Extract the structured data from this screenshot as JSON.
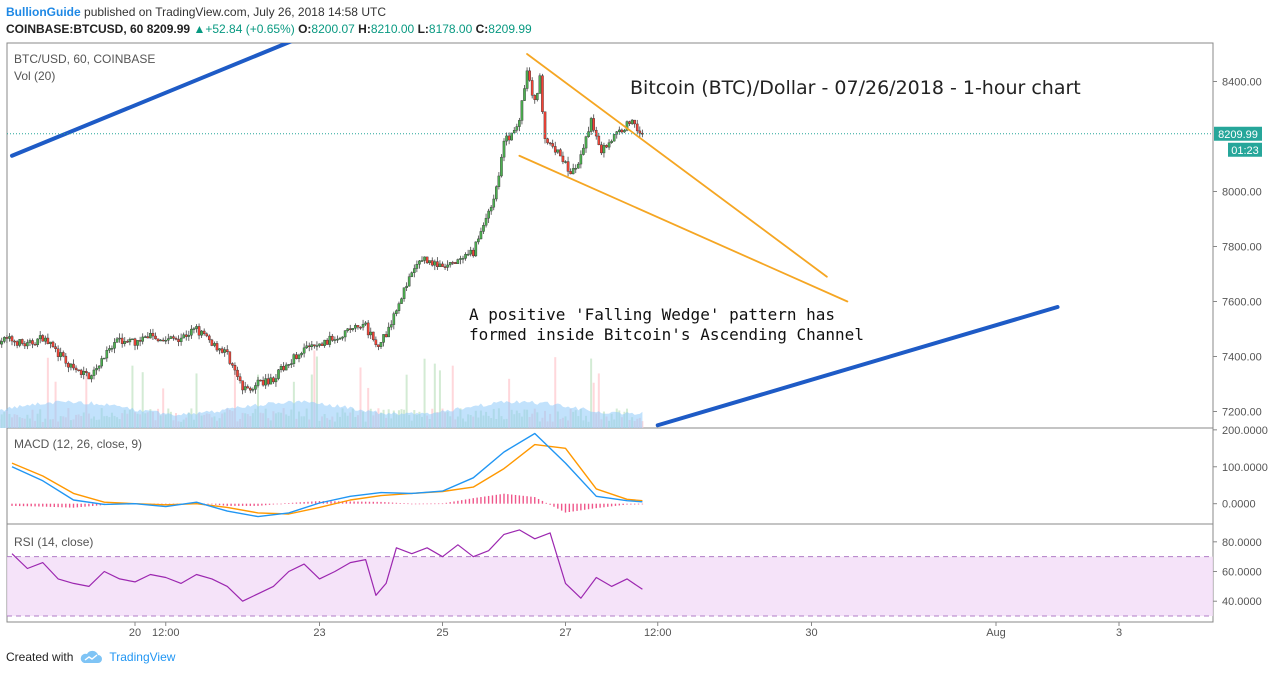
{
  "header": {
    "publisher": "BullionGuide",
    "published_text": "published on TradingView.com, July 26, 2018 14:58 UTC",
    "symbol": "COINBASE:BTCUSD, 60",
    "last": "8209.99",
    "change": "+52.84 (+0.65%)",
    "open_label": "O:",
    "open": "8200.07",
    "high_label": "H:",
    "high": "8210.00",
    "low_label": "L:",
    "low": "8178.00",
    "close_label": "C:",
    "close": "8209.99"
  },
  "footer": {
    "created_with": "Created with",
    "brand": "TradingView",
    "icon": "tradingview-cloud-icon"
  },
  "colors": {
    "up": "#4caf50",
    "down": "#f44336",
    "channel": "#1e5bc6",
    "wedge": "#f5a623",
    "macd": "#2196f3",
    "signal": "#ff9800",
    "rsi": "#9c27b0",
    "volume": "#90caf9"
  },
  "chart_data": [
    {
      "type": "candlestick",
      "panel": "price",
      "labels": [
        "BTC/USD, 60, COINBASE",
        "Vol (20)"
      ],
      "title": "Bitcoin (BTC)/Dollar - 07/26/2018 - 1-hour chart",
      "annotation": [
        "A positive 'Falling Wedge' pattern has",
        "formed inside Bitcoin's Ascending Channel"
      ],
      "y_ticks": [
        "8400.00",
        "8000.00",
        "7800.00",
        "7600.00",
        "7400.00",
        "7200.00"
      ],
      "y_tick_values": [
        8400,
        8000,
        7800,
        7600,
        7400,
        7200
      ],
      "ylim": [
        7140,
        8540
      ],
      "last_price": "8209.99",
      "countdown": "01:23",
      "x_ticks": [
        "20",
        "12:00",
        "23",
        "25",
        "27",
        "12:00",
        "30",
        "Aug",
        "3"
      ],
      "x_tick_hours": [
        48,
        60,
        120,
        168,
        216,
        252,
        312,
        384,
        432
      ],
      "x_range_hours": [
        0,
        408
      ],
      "x_extent_hours": [
        -5,
        407
      ],
      "anchors": [
        [
          0,
          7460
        ],
        [
          6,
          7440
        ],
        [
          12,
          7470
        ],
        [
          18,
          7410
        ],
        [
          24,
          7350
        ],
        [
          30,
          7330
        ],
        [
          36,
          7400
        ],
        [
          42,
          7460
        ],
        [
          48,
          7450
        ],
        [
          54,
          7480
        ],
        [
          60,
          7460
        ],
        [
          66,
          7470
        ],
        [
          72,
          7500
        ],
        [
          78,
          7450
        ],
        [
          84,
          7410
        ],
        [
          90,
          7280
        ],
        [
          96,
          7300
        ],
        [
          102,
          7320
        ],
        [
          108,
          7380
        ],
        [
          114,
          7430
        ],
        [
          120,
          7440
        ],
        [
          126,
          7470
        ],
        [
          132,
          7500
        ],
        [
          138,
          7510
        ],
        [
          142,
          7440
        ],
        [
          146,
          7480
        ],
        [
          150,
          7580
        ],
        [
          156,
          7700
        ],
        [
          160,
          7760
        ],
        [
          168,
          7720
        ],
        [
          176,
          7750
        ],
        [
          180,
          7780
        ],
        [
          184,
          7880
        ],
        [
          188,
          7980
        ],
        [
          190,
          8060
        ],
        [
          192,
          8180
        ],
        [
          196,
          8220
        ],
        [
          198,
          8260
        ],
        [
          201,
          8430
        ],
        [
          204,
          8320
        ],
        [
          206,
          8410
        ],
        [
          208,
          8200
        ],
        [
          210,
          8160
        ],
        [
          214,
          8140
        ],
        [
          218,
          8060
        ],
        [
          222,
          8120
        ],
        [
          226,
          8260
        ],
        [
          230,
          8150
        ],
        [
          236,
          8210
        ],
        [
          242,
          8260
        ],
        [
          246,
          8210
        ]
      ],
      "overlays": {
        "ascending_channel_upper": [
          [
            0,
            8130
          ],
          [
            144,
            8680
          ]
        ],
        "ascending_channel_lower": [
          [
            252,
            7150
          ],
          [
            408,
            7580
          ]
        ],
        "wedge_upper": [
          [
            201,
            8500
          ],
          [
            318,
            7690
          ]
        ],
        "wedge_lower": [
          [
            198,
            8130
          ],
          [
            326,
            7600
          ]
        ]
      }
    },
    {
      "type": "line",
      "panel": "macd",
      "label": "MACD (12, 26, close, 9)",
      "y_ticks": [
        "200.0000",
        "100.0000",
        "0.0000"
      ],
      "y_tick_values": [
        200,
        100,
        0
      ],
      "ylim": [
        -55,
        205
      ],
      "series": [
        {
          "name": "MACD",
          "x": [
            0,
            12,
            24,
            36,
            48,
            60,
            72,
            84,
            96,
            108,
            120,
            132,
            144,
            156,
            168,
            180,
            192,
            204,
            216,
            228,
            240,
            246
          ],
          "values": [
            100,
            62,
            10,
            -2,
            0,
            -8,
            4,
            -20,
            -35,
            -25,
            2,
            20,
            30,
            28,
            34,
            70,
            140,
            190,
            110,
            20,
            8,
            5
          ]
        },
        {
          "name": "Signal",
          "x": [
            0,
            12,
            24,
            36,
            48,
            60,
            72,
            84,
            96,
            108,
            120,
            132,
            144,
            156,
            168,
            180,
            192,
            204,
            216,
            228,
            240,
            246
          ],
          "values": [
            110,
            75,
            28,
            4,
            0,
            -3,
            0,
            -10,
            -25,
            -28,
            -10,
            10,
            22,
            28,
            33,
            45,
            95,
            160,
            150,
            40,
            12,
            8
          ]
        }
      ]
    },
    {
      "type": "line",
      "panel": "rsi",
      "label": "RSI (14, close)",
      "y_ticks": [
        "80.0000",
        "60.0000",
        "40.0000"
      ],
      "y_tick_values": [
        80,
        60,
        40
      ],
      "ylim": [
        26,
        92
      ],
      "bands": [
        30,
        70
      ],
      "series": [
        {
          "name": "RSI",
          "x": [
            0,
            6,
            12,
            18,
            24,
            30,
            36,
            42,
            48,
            54,
            60,
            66,
            72,
            78,
            84,
            90,
            96,
            102,
            108,
            114,
            120,
            126,
            132,
            138,
            142,
            146,
            150,
            156,
            162,
            168,
            174,
            180,
            186,
            192,
            198,
            204,
            210,
            216,
            222,
            228,
            234,
            240,
            246
          ],
          "values": [
            72,
            62,
            66,
            55,
            52,
            50,
            60,
            55,
            53,
            58,
            56,
            52,
            58,
            55,
            50,
            40,
            45,
            50,
            60,
            65,
            55,
            60,
            66,
            68,
            44,
            52,
            76,
            72,
            76,
            70,
            78,
            70,
            74,
            85,
            88,
            82,
            86,
            52,
            42,
            56,
            50,
            55,
            48
          ]
        }
      ]
    }
  ]
}
